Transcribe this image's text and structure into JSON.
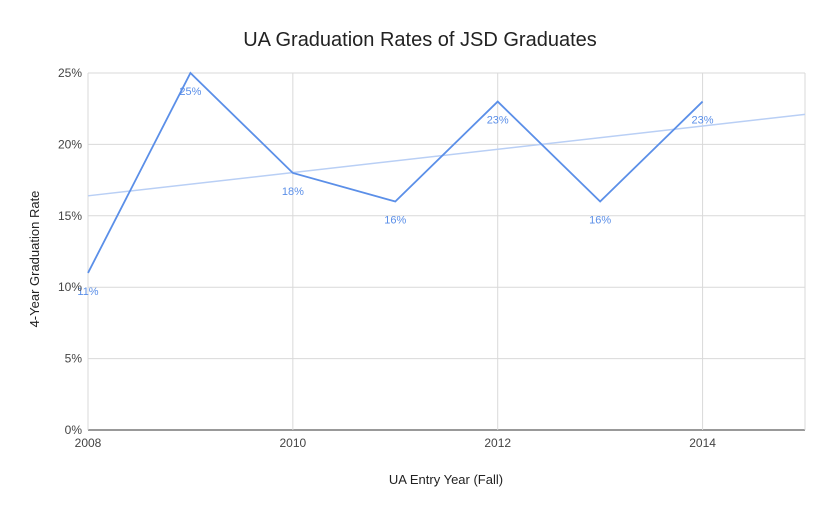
{
  "chart_data": {
    "type": "line",
    "title": "UA Graduation Rates of JSD Graduates",
    "xlabel": "UA Entry Year (Fall)",
    "ylabel": "4-Year Graduation Rate",
    "xlim": [
      2008,
      2015
    ],
    "ylim": [
      0,
      25
    ],
    "x_ticks": [
      "2008",
      "2010",
      "2012",
      "2014"
    ],
    "y_ticks": [
      "0%",
      "5%",
      "10%",
      "15%",
      "20%",
      "25%"
    ],
    "grid": true,
    "legend": "none",
    "series": [
      {
        "x": [
          2008,
          2009,
          2010,
          2011,
          2012,
          2013,
          2014
        ],
        "values": [
          11,
          25,
          18,
          16,
          23,
          16,
          23
        ],
        "data_labels": [
          "11%",
          "25%",
          "18%",
          "16%",
          "23%",
          "16%",
          "23%"
        ],
        "color": "#5b8fe8"
      }
    ],
    "trendline": {
      "x": [
        2008,
        2015
      ],
      "values": [
        16.4,
        22.1
      ],
      "color": "#b9cff5"
    }
  }
}
